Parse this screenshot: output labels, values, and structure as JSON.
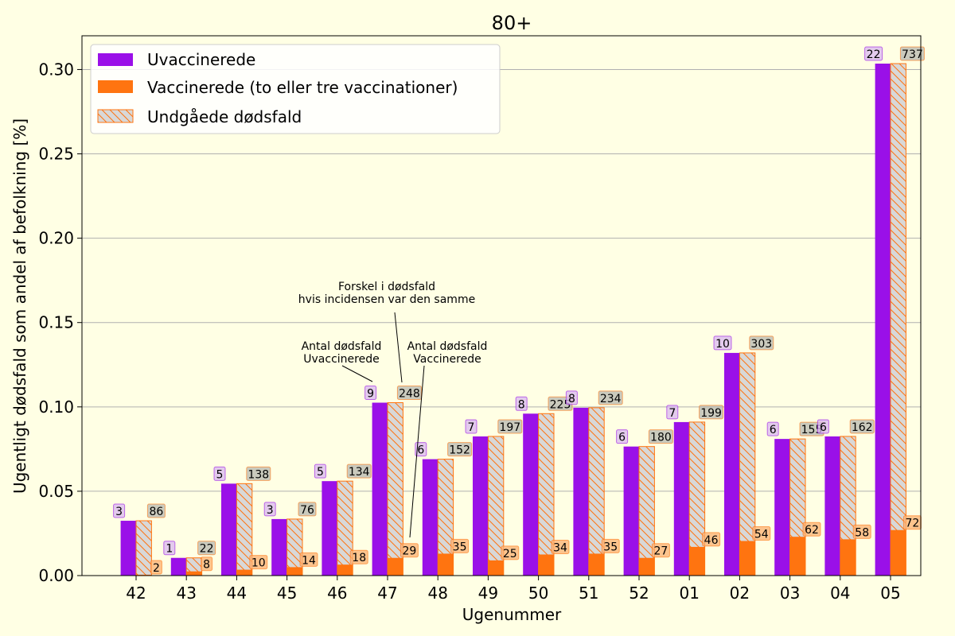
{
  "chart_data": {
    "type": "bar",
    "title": "80+",
    "xlabel": "Ugenummer",
    "ylabel": "Ugentligt dødsfald som andel af befolkning [%]",
    "ylim": [
      0,
      0.32
    ],
    "yticks": [
      "0.00",
      "0.05",
      "0.10",
      "0.15",
      "0.20",
      "0.25",
      "0.30"
    ],
    "grid": "y",
    "legend_position": "top-left",
    "categories": [
      "42",
      "43",
      "44",
      "45",
      "46",
      "47",
      "48",
      "49",
      "50",
      "51",
      "52",
      "01",
      "02",
      "03",
      "04",
      "05"
    ],
    "series": [
      {
        "name": "Uvaccinerede",
        "color": "#9a10e8",
        "values": [
          0.0325,
          0.0105,
          0.0545,
          0.0335,
          0.056,
          0.1025,
          0.069,
          0.0825,
          0.096,
          0.0995,
          0.0765,
          0.091,
          0.132,
          0.081,
          0.0825,
          0.3035
        ],
        "labels": [
          "3",
          "1",
          "5",
          "3",
          "5",
          "9",
          "6",
          "7",
          "8",
          "8",
          "6",
          "7",
          "10",
          "6",
          "6",
          "22"
        ]
      },
      {
        "name": "Vaccinerede (to eller tre vaccinationer)",
        "color": "#ff7410",
        "values": [
          0.0005,
          0.0025,
          0.0035,
          0.005,
          0.0065,
          0.0105,
          0.013,
          0.009,
          0.0125,
          0.013,
          0.0105,
          0.017,
          0.0205,
          0.023,
          0.0215,
          0.027
        ],
        "labels": [
          "2",
          "8",
          "10",
          "14",
          "18",
          "29",
          "35",
          "25",
          "34",
          "35",
          "27",
          "46",
          "54",
          "62",
          "58",
          "72"
        ]
      },
      {
        "name": "Undgåede dødsfald",
        "color": "#d8d8d8",
        "edge_color": "#ff7410",
        "labels": [
          "86",
          "22",
          "138",
          "76",
          "134",
          "248",
          "152",
          "197",
          "225",
          "234",
          "180",
          "199",
          "303",
          "155",
          "162",
          "737"
        ]
      }
    ],
    "annotations": [
      {
        "text": "Antal dødsfald\nUvaccinerede"
      },
      {
        "text": "Forskel i dødsfald\nhvis incidensen var den samme"
      },
      {
        "text": "Antal dødsfald\nVaccinerede"
      }
    ]
  }
}
